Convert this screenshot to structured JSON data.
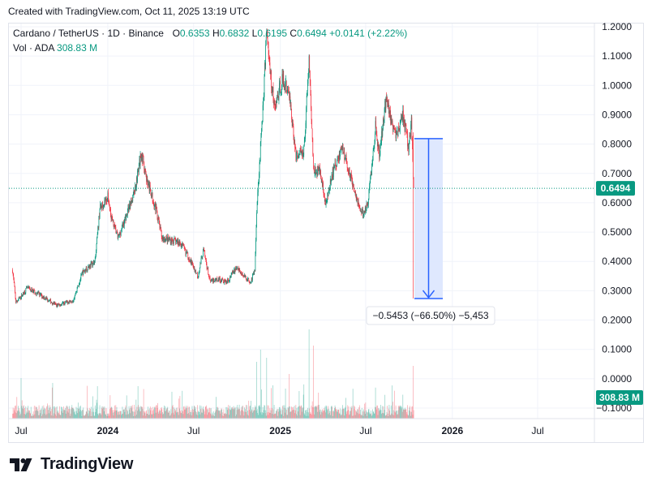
{
  "header": {
    "created": "Created with TradingView.com, Oct 11, 2025 13:19 UTC"
  },
  "legend": {
    "symbol": "Cardano / TetherUS · 1D · Binance",
    "o_label": "O",
    "o_value": "0.6353",
    "h_label": "H",
    "h_value": "0.6832",
    "l_label": "L",
    "l_value": "0.6195",
    "c_label": "C",
    "c_value": "0.6494",
    "change": "+0.0141 (+2.22%)",
    "vol_label": "Vol · ADA",
    "vol_value": "308.83 M"
  },
  "colors": {
    "up": "#089981",
    "down": "#f23645",
    "measure": "#2962ff",
    "measure_fill": "#dbe5fe",
    "last_price_bg": "#089981"
  },
  "brand": {
    "name": "TradingView",
    "logo_icon": "tradingview-logo-icon"
  },
  "chart_data": {
    "type": "candlestick",
    "title": "Cardano / TetherUS · 1D · Binance",
    "y_axis": {
      "ticks": [
        1.2,
        1.1,
        1.0,
        0.9,
        0.8,
        0.7,
        0.6,
        0.5,
        0.4,
        0.3,
        0.2,
        0.1,
        0.0,
        -0.1
      ],
      "tick_labels": [
        "1.2000",
        "1.1000",
        "1.0000",
        "0.9000",
        "0.8000",
        "0.7000",
        "0.6000",
        "0.5000",
        "0.4000",
        "0.3000",
        "0.2000",
        "0.1000",
        "0.0000",
        "−0.1000"
      ],
      "range": [
        -0.12,
        1.22
      ]
    },
    "x_axis": {
      "ticks": [
        "2023-07-01",
        "2024-01-01",
        "2024-07-01",
        "2025-01-01",
        "2025-07-01",
        "2026-01-01",
        "2026-07-01"
      ],
      "tick_labels": [
        "Jul",
        "2024",
        "Jul",
        "2025",
        "Jul",
        "2026",
        "Jul"
      ],
      "bold_labels": [
        "2024",
        "2025",
        "2026"
      ],
      "range": [
        "2023-06-13",
        "2026-09-25"
      ]
    },
    "last_price": {
      "value": 0.6494,
      "label": "0.6494"
    },
    "volume_badge": "308.83 M",
    "price_path": [
      [
        "2023-06-13",
        0.37
      ],
      [
        "2023-06-20",
        0.26
      ],
      [
        "2023-07-01",
        0.28
      ],
      [
        "2023-07-14",
        0.31
      ],
      [
        "2023-07-25",
        0.3
      ],
      [
        "2023-08-17",
        0.28
      ],
      [
        "2023-09-15",
        0.25
      ],
      [
        "2023-10-05",
        0.26
      ],
      [
        "2023-10-20",
        0.27
      ],
      [
        "2023-11-08",
        0.36
      ],
      [
        "2023-11-20",
        0.38
      ],
      [
        "2023-12-05",
        0.4
      ],
      [
        "2023-12-15",
        0.58
      ],
      [
        "2024-01-01",
        0.62
      ],
      [
        "2024-01-10",
        0.54
      ],
      [
        "2024-01-23",
        0.48
      ],
      [
        "2024-02-10",
        0.56
      ],
      [
        "2024-02-28",
        0.65
      ],
      [
        "2024-03-12",
        0.77
      ],
      [
        "2024-03-25",
        0.67
      ],
      [
        "2024-04-12",
        0.58
      ],
      [
        "2024-04-25",
        0.48
      ],
      [
        "2024-05-20",
        0.47
      ],
      [
        "2024-06-05",
        0.46
      ],
      [
        "2024-06-25",
        0.4
      ],
      [
        "2024-07-10",
        0.35
      ],
      [
        "2024-07-22",
        0.44
      ],
      [
        "2024-08-05",
        0.33
      ],
      [
        "2024-08-20",
        0.34
      ],
      [
        "2024-09-10",
        0.33
      ],
      [
        "2024-09-30",
        0.38
      ],
      [
        "2024-10-15",
        0.35
      ],
      [
        "2024-10-30",
        0.33
      ],
      [
        "2024-11-08",
        0.37
      ],
      [
        "2024-11-12",
        0.58
      ],
      [
        "2024-11-20",
        0.79
      ],
      [
        "2024-11-27",
        0.98
      ],
      [
        "2024-12-03",
        1.2
      ],
      [
        "2024-12-10",
        1.05
      ],
      [
        "2024-12-20",
        0.92
      ],
      [
        "2025-01-05",
        1.02
      ],
      [
        "2025-01-20",
        0.97
      ],
      [
        "2025-02-03",
        0.76
      ],
      [
        "2025-02-20",
        0.78
      ],
      [
        "2025-03-03",
        1.09
      ],
      [
        "2025-03-12",
        0.72
      ],
      [
        "2025-03-28",
        0.7
      ],
      [
        "2025-04-07",
        0.59
      ],
      [
        "2025-04-22",
        0.7
      ],
      [
        "2025-05-12",
        0.79
      ],
      [
        "2025-05-28",
        0.7
      ],
      [
        "2025-06-05",
        0.66
      ],
      [
        "2025-06-22",
        0.56
      ],
      [
        "2025-07-05",
        0.59
      ],
      [
        "2025-07-15",
        0.74
      ],
      [
        "2025-07-22",
        0.86
      ],
      [
        "2025-07-30",
        0.76
      ],
      [
        "2025-08-14",
        0.97
      ],
      [
        "2025-08-25",
        0.87
      ],
      [
        "2025-09-05",
        0.83
      ],
      [
        "2025-09-18",
        0.9
      ],
      [
        "2025-09-30",
        0.79
      ],
      [
        "2025-10-06",
        0.87
      ],
      [
        "2025-10-10",
        0.68
      ],
      [
        "2025-10-11",
        0.6494
      ]
    ],
    "crash_candle": {
      "date": "2025-10-10",
      "open": 0.83,
      "low": 0.2735,
      "high": 0.84
    },
    "measure": {
      "from_value": 0.8188,
      "to_value": 0.2735,
      "label": "−0.5453 (−66.50%) −5,453"
    }
  }
}
